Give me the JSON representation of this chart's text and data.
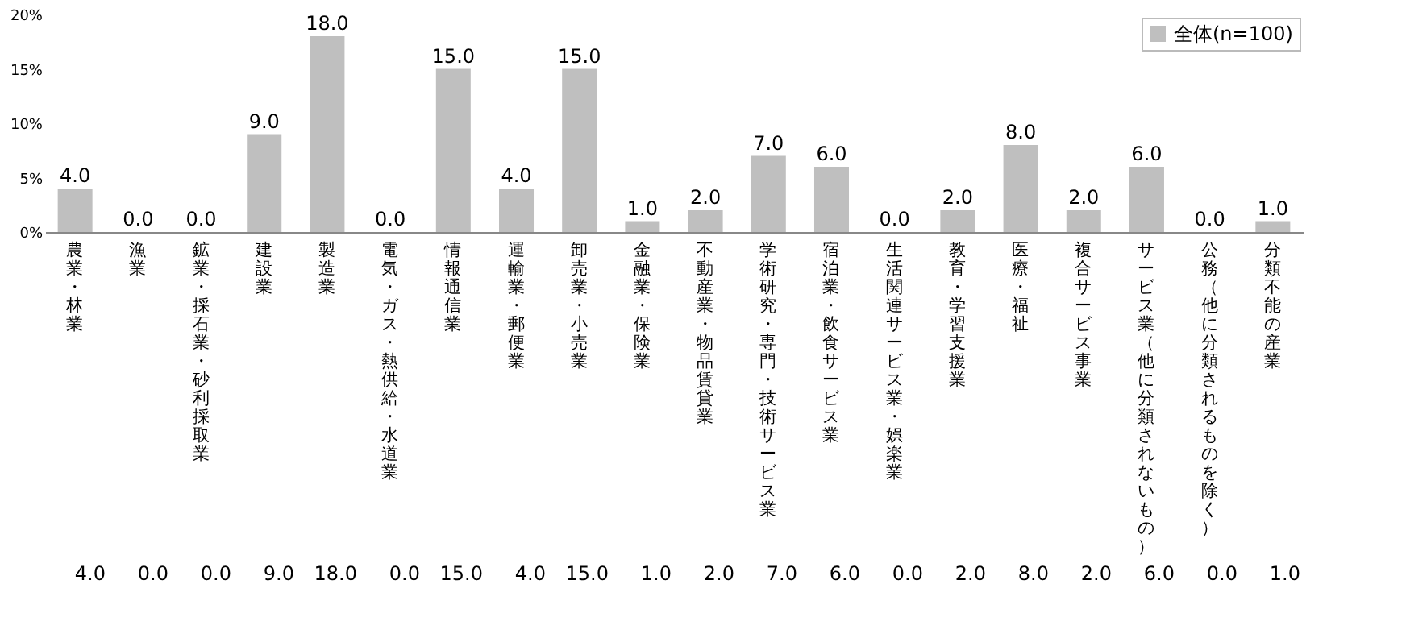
{
  "chart_data": {
    "type": "bar",
    "categories": [
      "農業・林業",
      "漁業",
      "鉱業・採石業・砂利採取業",
      "建設業",
      "製造業",
      "電気・ガス・熱供給・水道業",
      "情報通信業",
      "運輸業・郵便業",
      "卸売業・小売業",
      "金融業・保険業",
      "不動産業・物品賃貸業",
      "学術研究・専門・技術サービス業",
      "宿泊業・飲食サービス業",
      "生活関連サービス業・娯楽業",
      "教育・学習支援業",
      "医療・福祉",
      "複合サービス事業",
      "サービス業（他に分類されないもの）",
      "公務（他に分類されるものを除く）",
      "分類不能の産業"
    ],
    "series": [
      {
        "name": "全体(n=100)",
        "color": "#bfbfbf",
        "values": [
          4,
          0,
          0,
          9,
          18,
          0,
          15,
          4,
          15,
          1,
          2,
          7,
          6,
          0,
          2,
          8,
          2,
          6,
          0,
          1
        ],
        "value_labels": [
          "4.0",
          "0.0",
          "0.0",
          "9.0",
          "18.0",
          "0.0",
          "15.0",
          "4.0",
          "15.0",
          "1.0",
          "2.0",
          "7.0",
          "6.0",
          "0.0",
          "2.0",
          "8.0",
          "2.0",
          "6.0",
          "0.0",
          "1.0"
        ]
      }
    ],
    "ylim": [
      0,
      20
    ],
    "yticks": [
      {
        "value": 0,
        "label": "0%"
      },
      {
        "value": 5,
        "label": "5%"
      },
      {
        "value": 10,
        "label": "10%"
      },
      {
        "value": 15,
        "label": "15%"
      },
      {
        "value": 20,
        "label": "20%"
      }
    ],
    "legend": "top right",
    "grid": false
  }
}
